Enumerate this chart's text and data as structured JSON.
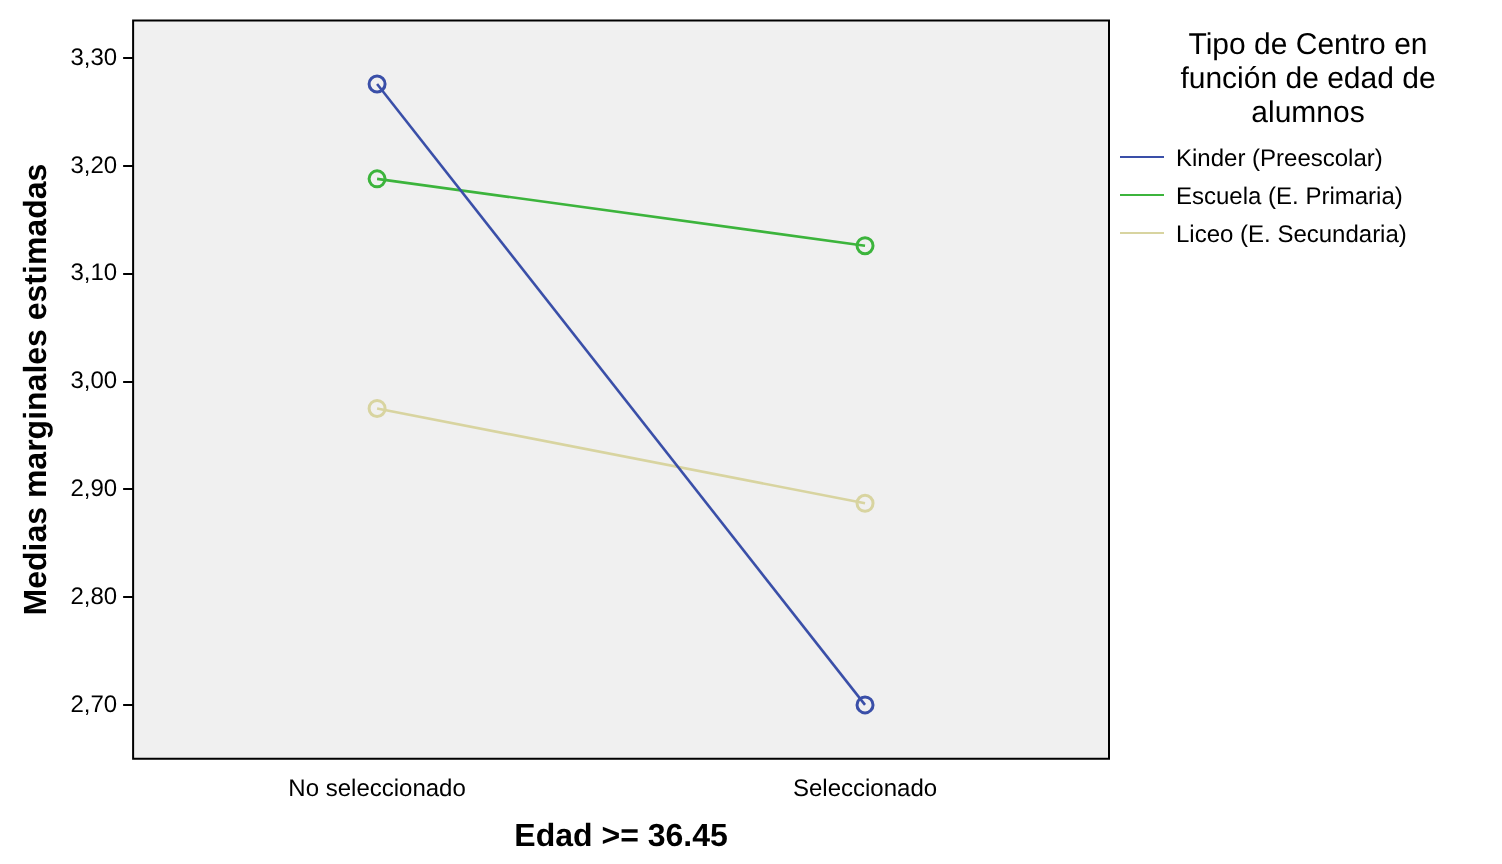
{
  "chart_data": {
    "type": "line",
    "xlabel": "Edad >= 36.45",
    "ylabel": "Medias marginales estimadas",
    "legend_title": "Tipo de Centro en función de edad de alumnos",
    "categories": [
      "No seleccionado",
      "Seleccionado"
    ],
    "series": [
      {
        "name": "Kinder (Preescolar)",
        "color": "#3a4fa8",
        "values": [
          3.276,
          2.7
        ]
      },
      {
        "name": "Escuela (E. Primaria)",
        "color": "#3cb43c",
        "values": [
          3.188,
          3.126
        ]
      },
      {
        "name": "Liceo (E. Secundaria)",
        "color": "#d8d4a0",
        "values": [
          2.975,
          2.887
        ]
      }
    ],
    "ylim": [
      2.65,
      3.335
    ],
    "yticks": [
      {
        "value": 2.7,
        "label": "2,70"
      },
      {
        "value": 2.8,
        "label": "2,80"
      },
      {
        "value": 2.9,
        "label": "2,90"
      },
      {
        "value": 3.0,
        "label": "3,00"
      },
      {
        "value": 3.1,
        "label": "3,10"
      },
      {
        "value": 3.2,
        "label": "3,20"
      },
      {
        "value": 3.3,
        "label": "3,30"
      }
    ],
    "grid": false,
    "legend": "right",
    "marker": "circle",
    "line_style": "solid"
  }
}
